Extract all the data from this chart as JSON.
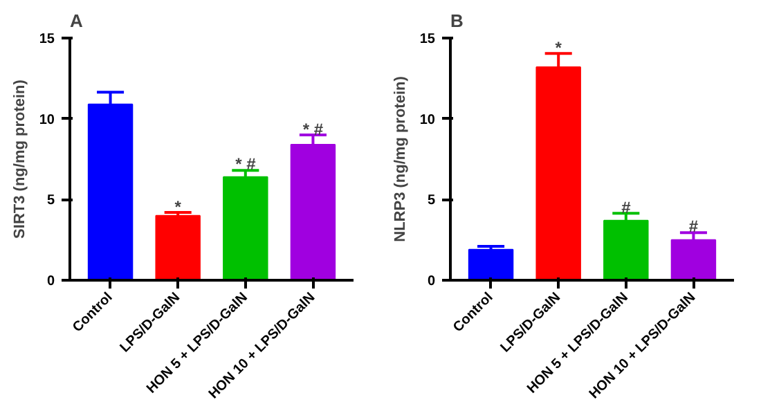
{
  "chart_data": [
    {
      "type": "bar",
      "title": "A",
      "ylabel": "SIRT3 (ng/mg protein)",
      "categories": [
        "Control",
        "LPS/D-GalN",
        "HON 5 + LPS/D-GalN",
        "HON 10 + LPS/D-GalN"
      ],
      "values": [
        10.9,
        4.0,
        6.4,
        8.4
      ],
      "errors": [
        0.75,
        0.2,
        0.4,
        0.6
      ],
      "colors": [
        "#0000ff",
        "#ff0000",
        "#00c000",
        "#a000e0"
      ],
      "ylim": [
        0,
        15
      ],
      "yticks": [
        0,
        5,
        10,
        15
      ],
      "grid": false,
      "annotations": [
        {
          "text": "*",
          "x": "LPS/D-GalN",
          "y": 4.2
        },
        {
          "text": "* #",
          "x": "HON 5 + LPS/D-GalN",
          "y": 6.85
        },
        {
          "text": "* #",
          "x": "HON 10 + LPS/D-GalN",
          "y": 9.0
        }
      ]
    },
    {
      "type": "bar",
      "title": "B",
      "ylabel": "NLRP3 (ng/mg protein)",
      "categories": [
        "Control",
        "LPS/D-GalN",
        "HON 5 + LPS/D-GalN",
        "HON 10 + LPS/D-GalN"
      ],
      "values": [
        1.9,
        13.2,
        3.7,
        2.5
      ],
      "errors": [
        0.2,
        0.85,
        0.45,
        0.45
      ],
      "colors": [
        "#0000ff",
        "#ff0000",
        "#00c000",
        "#a000e0"
      ],
      "ylim": [
        0,
        15
      ],
      "yticks": [
        0,
        5,
        10,
        15
      ],
      "grid": false,
      "annotations": [
        {
          "text": "*",
          "x": "LPS/D-GalN",
          "y": 14.05
        },
        {
          "text": "#",
          "x": "HON 5 + LPS/D-GalN",
          "y": 4.15
        },
        {
          "text": "#",
          "x": "HON 10 + LPS/D-GalN",
          "y": 3.0
        }
      ]
    }
  ]
}
